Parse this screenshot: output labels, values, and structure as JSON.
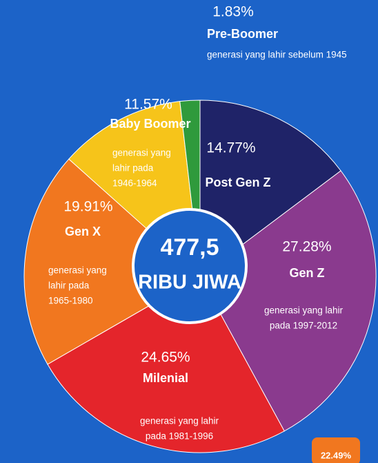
{
  "chart_data": {
    "type": "pie",
    "center_value": "477,5",
    "center_unit": "RIBU JIWA",
    "categories": [
      "Post Gen Z",
      "Gen Z",
      "Milenial",
      "Gen X",
      "Baby Boomer",
      "Pre-Boomer"
    ],
    "values": [
      14.77,
      27.28,
      24.65,
      19.91,
      11.57,
      1.83
    ],
    "value_labels": [
      "14.77%",
      "27.28%",
      "24.65%",
      "19.91%",
      "11.57%",
      "1.83%"
    ],
    "colors": [
      "#1f2368",
      "#8a3a8e",
      "#e4252b",
      "#f1771f",
      "#f6c41a",
      "#2f9a3c"
    ],
    "descriptions": [
      [],
      [
        "generasi yang lahir",
        "pada 1997-2012"
      ],
      [
        "generasi yang lahir",
        "pada 1981-1996"
      ],
      [
        "generasi yang",
        "lahir pada",
        "1965-1980"
      ],
      [
        "generasi yang",
        "lahir pada",
        "1946-1964"
      ],
      [
        "generasi yang lahir sebelum 1945"
      ]
    ],
    "annotation": "22.49%"
  }
}
